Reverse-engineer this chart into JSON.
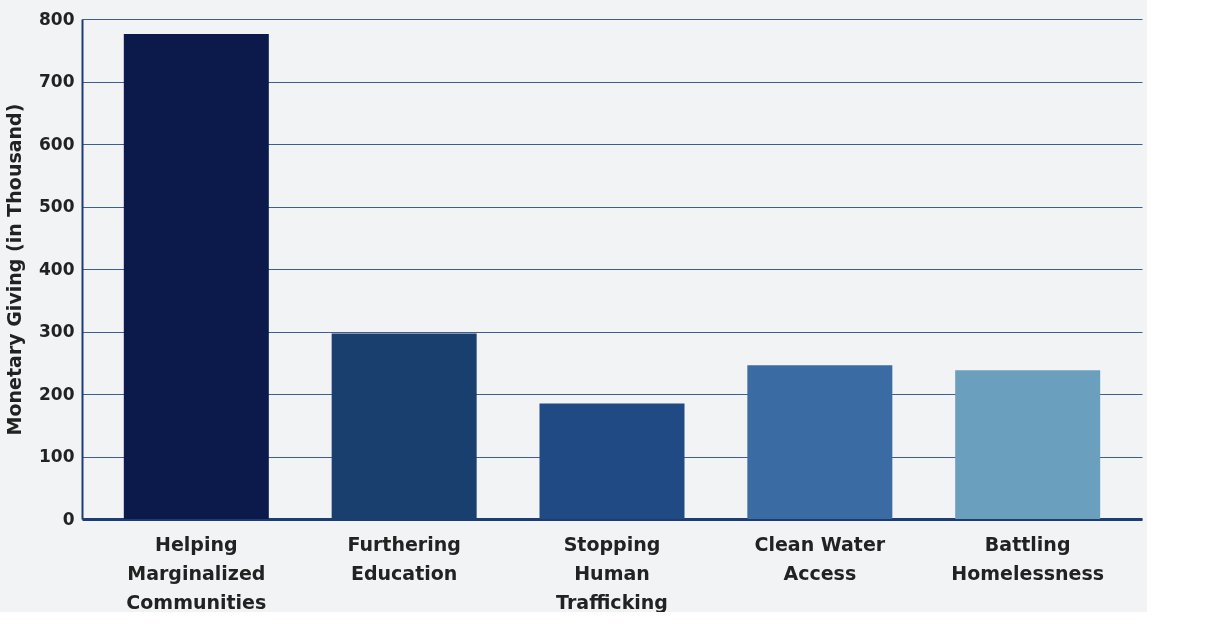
{
  "chart_data": {
    "type": "bar",
    "ylabel": "Monetary Giving (in  Thousand)",
    "categories": [
      "Helping Marginalized Communities",
      "Furthering Education",
      "Stopping Human Trafficking",
      "Clean Water Access",
      "Battling Homelessness"
    ],
    "values": [
      776,
      297,
      185,
      246,
      238
    ],
    "colors": [
      "#0b1a4b",
      "#193f6e",
      "#1f4a84",
      "#3a6ba3",
      "#6b9fbe"
    ],
    "ylim": [
      0,
      800
    ],
    "yticks": [
      0,
      100,
      200,
      300,
      400,
      500,
      600,
      700,
      800
    ],
    "grid": "y"
  }
}
